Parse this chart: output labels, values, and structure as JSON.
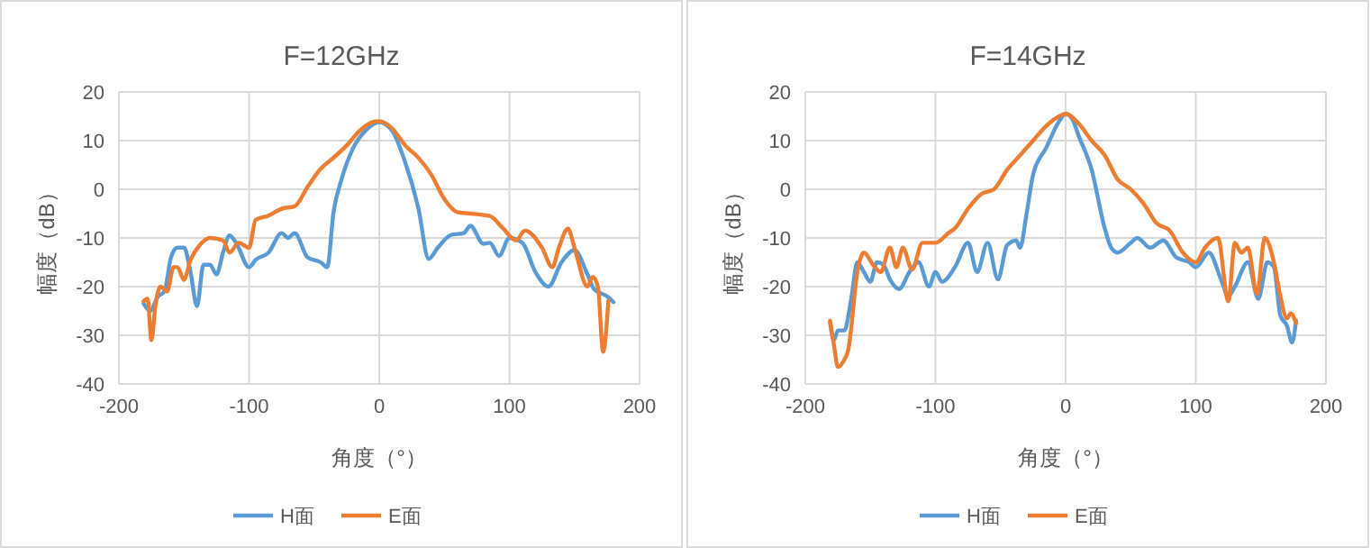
{
  "chart_data": [
    {
      "type": "line",
      "title": "F=12GHz",
      "xlabel": "角度（°）",
      "ylabel": "幅度（dB）",
      "xlim": [
        -200,
        200
      ],
      "xticks": [
        -200,
        -100,
        0,
        100,
        200
      ],
      "ylim": [
        -40,
        20
      ],
      "yticks": [
        -40,
        -30,
        -20,
        -10,
        0,
        10,
        20
      ],
      "grid": true,
      "legend": "bottom",
      "line_style": "solid",
      "marker": "none",
      "series": [
        {
          "name": "H面",
          "color": "#5b9bd5",
          "x": [
            -181,
            -176,
            -170,
            -165,
            -160,
            -155,
            -150,
            -145,
            -140,
            -135,
            -130,
            -125,
            -120,
            -115,
            -110,
            -100,
            -95,
            -85,
            -75,
            -70,
            -65,
            -55,
            -45,
            -40,
            -35,
            -29,
            -20,
            -10,
            0,
            10,
            20,
            30,
            38,
            45,
            55,
            65,
            70,
            80,
            85,
            92,
            100,
            110,
            120,
            130,
            140,
            150,
            160,
            165,
            175,
            180
          ],
          "values": [
            -23.5,
            -25,
            -22,
            -21,
            -14,
            -12,
            -12,
            -17,
            -24,
            -15.5,
            -15.5,
            -17.5,
            -13,
            -9.5,
            -11,
            -16,
            -14.5,
            -13,
            -9,
            -10,
            -9,
            -14,
            -15,
            -16,
            -4.5,
            2,
            8.5,
            12.2,
            13.8,
            12,
            5.5,
            -3.8,
            -14.3,
            -12,
            -9.4,
            -9,
            -7.5,
            -11.2,
            -11,
            -13.7,
            -10,
            -11,
            -17,
            -20,
            -15,
            -12.5,
            -17.5,
            -20.5,
            -22,
            -23.2
          ]
        },
        {
          "name": "E面",
          "color": "#ed7d31",
          "x": [
            -181,
            -178,
            -175,
            -172,
            -168,
            -163,
            -158,
            -155,
            -150,
            -145,
            -138,
            -130,
            -120,
            -115,
            -108,
            -100,
            -95,
            -85,
            -75,
            -65,
            -55,
            -45,
            -35,
            -25,
            -15,
            -5,
            0,
            10,
            20,
            30,
            40,
            50,
            60,
            70,
            85,
            95,
            105,
            112,
            125,
            133,
            138,
            145,
            150,
            160,
            164,
            168,
            172,
            176
          ],
          "values": [
            -23,
            -22.5,
            -31,
            -24,
            -20,
            -21,
            -16,
            -16,
            -18.6,
            -14.5,
            -11.5,
            -10,
            -10.5,
            -13,
            -11,
            -12,
            -6.3,
            -5.4,
            -4,
            -3.5,
            0.5,
            4.2,
            6.5,
            9,
            12,
            13.8,
            14,
            12.5,
            9,
            6.5,
            3,
            -2,
            -4.7,
            -5,
            -5.5,
            -8,
            -10.5,
            -8.5,
            -12,
            -16,
            -12,
            -8.1,
            -12,
            -20,
            -18,
            -20,
            -33.4,
            -23
          ]
        }
      ]
    },
    {
      "type": "line",
      "title": "F=14GHz",
      "xlabel": "角度（°）",
      "ylabel": "幅度（dB）",
      "xlim": [
        -200,
        200
      ],
      "xticks": [
        -200,
        -100,
        0,
        100,
        200
      ],
      "ylim": [
        -40,
        20
      ],
      "yticks": [
        -40,
        -30,
        -20,
        -10,
        0,
        10,
        20
      ],
      "grid": true,
      "legend": "bottom",
      "line_style": "solid",
      "marker": "none",
      "series": [
        {
          "name": "H面",
          "color": "#5b9bd5",
          "x": [
            -181,
            -178,
            -175,
            -170,
            -165,
            -160,
            -155,
            -150,
            -145,
            -140,
            -135,
            -128,
            -120,
            -113,
            -105,
            -100,
            -95,
            -85,
            -75,
            -68,
            -60,
            -52,
            -45,
            -38,
            -35,
            -30,
            -25,
            -15,
            -5,
            0,
            5,
            10,
            20,
            30,
            35,
            40,
            50,
            55,
            65,
            75,
            85,
            95,
            100,
            110,
            120,
            125,
            130,
            140,
            148,
            155,
            160,
            165,
            170,
            174,
            177
          ],
          "values": [
            -27.3,
            -31,
            -29,
            -29,
            -23,
            -15,
            -17,
            -19,
            -15,
            -15.5,
            -18.5,
            -20.5,
            -17,
            -15,
            -20,
            -17,
            -19,
            -16,
            -11,
            -17,
            -11,
            -18.5,
            -11.5,
            -10.5,
            -12,
            -5,
            3,
            8.5,
            14,
            15.5,
            14.5,
            11,
            4,
            -8,
            -12,
            -13,
            -11,
            -10,
            -12,
            -10.5,
            -14,
            -15,
            -16,
            -13,
            -19,
            -22,
            -20,
            -15,
            -22.5,
            -15,
            -16,
            -26,
            -28,
            -31.5,
            -27
          ]
        },
        {
          "name": "E面",
          "color": "#ed7d31",
          "x": [
            -181,
            -178,
            -175,
            -170,
            -167,
            -160,
            -155,
            -148,
            -142,
            -135,
            -130,
            -125,
            -118,
            -110,
            -100,
            -90,
            -85,
            -75,
            -65,
            -55,
            -45,
            -35,
            -25,
            -15,
            -5,
            0,
            10,
            20,
            30,
            40,
            50,
            60,
            70,
            80,
            90,
            100,
            107,
            117,
            125,
            130,
            135,
            140,
            147,
            153,
            160,
            165,
            170,
            173,
            177
          ],
          "values": [
            -27,
            -32,
            -36.5,
            -35,
            -33,
            -17,
            -13,
            -15.5,
            -17,
            -12,
            -16,
            -12,
            -16.5,
            -11,
            -11,
            -9,
            -8,
            -4,
            -1,
            0,
            4,
            7,
            10,
            13,
            15,
            15.5,
            13.5,
            10,
            7,
            2,
            0,
            -3,
            -7,
            -8.5,
            -13,
            -15,
            -12,
            -10,
            -23,
            -11,
            -13,
            -12,
            -21.5,
            -10,
            -15,
            -22,
            -26.5,
            -25.5,
            -27.5
          ]
        }
      ]
    }
  ]
}
